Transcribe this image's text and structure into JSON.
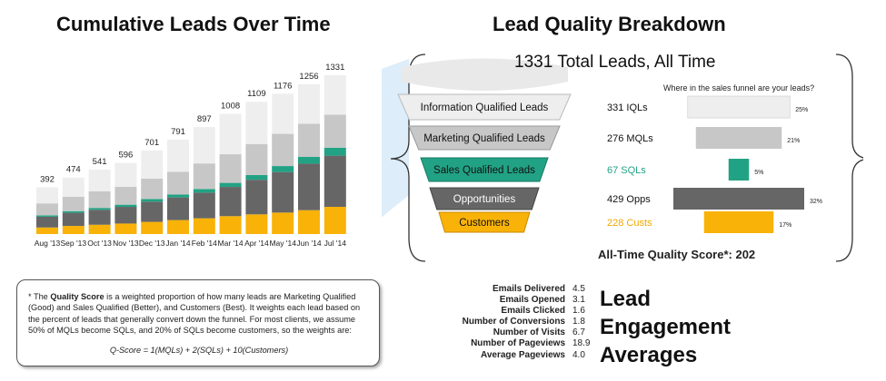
{
  "left_title": "Cumulative Leads Over Time",
  "right_title": "Lead Quality Breakdown",
  "colors": {
    "customers": "#f9b208",
    "opportunities": "#666666",
    "sqls": "#22a284",
    "mqls": "#c7c7c7",
    "iqls": "#eeeeee"
  },
  "chart_data": [
    {
      "type": "bar",
      "stacked": true,
      "title": "Cumulative Leads Over Time",
      "categories": [
        "Aug '13",
        "Sep '13",
        "Oct '13",
        "Nov '13",
        "Dec '13",
        "Jan '14",
        "Feb '14",
        "Mar '14",
        "Apr '14",
        "May '14",
        "Jun '14",
        "Jul '14"
      ],
      "totals": [
        392,
        474,
        541,
        596,
        701,
        791,
        897,
        1008,
        1109,
        1176,
        1256,
        1331
      ],
      "series": [
        {
          "name": "",
          "values": [
            55,
            68,
            78,
            88,
            102,
            117,
            132,
            150,
            165,
            180,
            200,
            228
          ]
        },
        {
          "name": "",
          "values": [
            90,
            110,
            125,
            140,
            170,
            190,
            215,
            245,
            290,
            340,
            390,
            429
          ]
        },
        {
          "name": "",
          "values": [
            12,
            14,
            16,
            18,
            22,
            25,
            30,
            34,
            40,
            50,
            58,
            67
          ]
        },
        {
          "name": "",
          "values": [
            100,
            120,
            140,
            150,
            170,
            190,
            215,
            240,
            260,
            270,
            276,
            276
          ]
        },
        {
          "name": "",
          "values": [
            135,
            162,
            182,
            200,
            237,
            269,
            305,
            339,
            354,
            336,
            332,
            331
          ]
        }
      ],
      "ylim": [
        0,
        1331
      ]
    },
    {
      "type": "bar",
      "orientation": "horizontal",
      "title": "Where in the sales funnel are your leads?",
      "categories": [
        "Information Qualified Leads",
        "Marketing Qualified Leads",
        "Sales Qualified Leads",
        "Opportunities",
        "Customers"
      ],
      "counts": [
        "331 IQLs",
        "276 MQLs",
        "67 SQLs",
        "429 Opps",
        "228 Custs"
      ],
      "values": [
        25,
        21,
        5,
        32,
        17
      ],
      "value_labels": [
        "25%",
        "21%",
        "5%",
        "32%",
        "17%"
      ],
      "xlim": [
        0,
        32
      ]
    }
  ],
  "total_leads": "1331 Total Leads, All Time",
  "quality_score": "All-Time Quality Score*: 202",
  "note": {
    "star": "* The ",
    "term": "Quality Score",
    "body": " is a weighted proportion of how many leads are Marketing Qualified (Good) and Sales Qualified (Better), and Customers (Best).  It  weights each lead based on the percent of leads  that generally convert down the funnel.  For most clients, we assume 50% of MQLs become SQLs, and 20% of SQLs become customers, so the weights are:",
    "formula": "Q-Score = 1(MQLs) + 2(SQLs) + 10(Customers)"
  },
  "engagement": {
    "title": "Lead Engagement Averages",
    "rows": [
      {
        "label": "Emails Delivered",
        "value": "4.5"
      },
      {
        "label": "Emails Opened",
        "value": "3.1"
      },
      {
        "label": "Emails Clicked",
        "value": "1.6"
      },
      {
        "label": "Number of Conversions",
        "value": "1.8"
      },
      {
        "label": "Number of Visits",
        "value": "6.7"
      },
      {
        "label": "Number of Pageviews",
        "value": "18.9"
      },
      {
        "label": "Average Pageviews",
        "value": "4.0"
      }
    ]
  }
}
